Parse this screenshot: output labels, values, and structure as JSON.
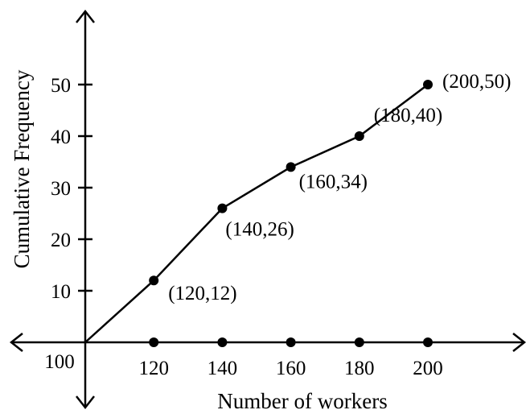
{
  "chart_data": {
    "type": "line",
    "title": "",
    "xlabel": "Number of workers",
    "ylabel": "Cumulative Frequency",
    "origin_label": "100",
    "x_ticks": [
      "120",
      "140",
      "160",
      "180",
      "200"
    ],
    "y_ticks": [
      "10",
      "20",
      "30",
      "40",
      "50"
    ],
    "series": [
      {
        "x": [
          100,
          120,
          140,
          160,
          180,
          200
        ],
        "y": [
          0,
          12,
          26,
          34,
          40,
          50
        ],
        "point_labels": [
          "",
          "(120,12)",
          "(140,26)",
          "(160,34)",
          "(180,40)",
          "(200,50)"
        ]
      }
    ],
    "axis_points_x": [
      120,
      140,
      160,
      180,
      200
    ],
    "xlim": [
      100,
      200
    ],
    "ylim": [
      0,
      50
    ],
    "grid": false
  }
}
